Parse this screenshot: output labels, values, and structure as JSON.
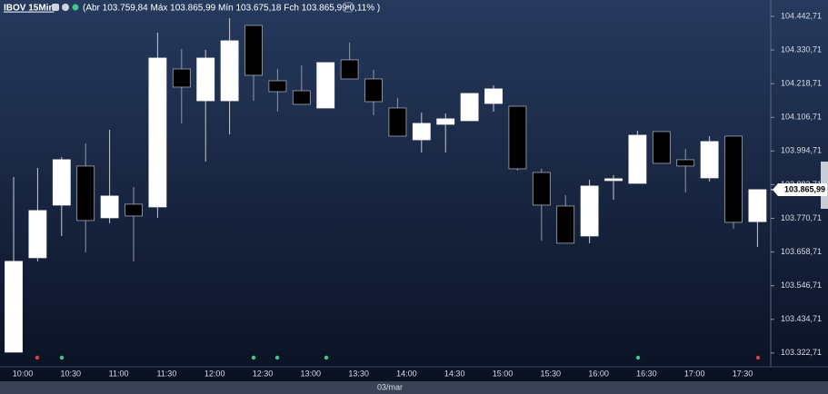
{
  "chart_data": {
    "type": "candlestick",
    "title": "IBOV 15Min",
    "subtitle": "(Abr 103.759,84 Máx 103.865,99 Mín 103.675,18 Fch 103.865,99 0,11% )",
    "x_label": "03/mar",
    "categories": [
      "10:00",
      null,
      "10:30",
      null,
      "11:00",
      null,
      "11:30",
      null,
      "12:00",
      null,
      "12:30",
      null,
      "13:00",
      null,
      "13:30",
      null,
      "14:00",
      null,
      "14:30",
      null,
      "15:00",
      null,
      "15:30",
      null,
      "16:00",
      null,
      "16:30",
      null,
      "17:00",
      null,
      "17:30",
      null
    ],
    "open": [
      103325.7,
      103639.6,
      103814.8,
      103944.6,
      103772.5,
      103817.8,
      103808.7,
      104267.6,
      104161.9,
      104161.9,
      104412.5,
      104228.3,
      104195.1,
      104137.8,
      104297.8,
      104234.4,
      104137.8,
      104032.1,
      104083.5,
      104095.5,
      104152.9,
      104143.8,
      103923.4,
      103811.7,
      103712.1,
      103896.3,
      103887.2,
      104059.3,
      103965.7,
      103905.3,
      104044.2,
      103759.84
    ],
    "high": [
      103908.3,
      103938.6,
      103974.7,
      104020.1,
      104065.3,
      103875.1,
      104388.4,
      104334.0,
      104331.0,
      104436.7,
      104412.5,
      104267.6,
      104279.7,
      104288.7,
      104355.1,
      104264.6,
      104171.0,
      104122.7,
      104119.7,
      104186.1,
      104213.3,
      104143.8,
      103935.5,
      103847.9,
      103899.3,
      103914.4,
      104062.3,
      104059.3,
      104001.9,
      104044.2,
      104044.2,
      103865.99
    ],
    "low": [
      103325.7,
      103627.6,
      103712.1,
      103657.8,
      103754.4,
      103627.6,
      103772.5,
      104086.5,
      103959.7,
      104050.2,
      104161.9,
      104125.7,
      104149.9,
      104137.8,
      104234.4,
      104113.6,
      104044.2,
      103989.9,
      103989.9,
      104095.5,
      104125.7,
      103929.5,
      103697.0,
      103688.0,
      103688.0,
      103832.9,
      103887.2,
      103953.6,
      103857.0,
      103893.2,
      103736.2,
      103675.18
    ],
    "close": [
      103627.6,
      103796.6,
      103965.7,
      103763.4,
      103844.9,
      103778.5,
      104303.8,
      104207.2,
      104303.8,
      104361.2,
      104246.5,
      104192.1,
      104149.9,
      104288.7,
      104234.4,
      104158.9,
      104044.2,
      104086.5,
      104101.6,
      104186.1,
      104201.2,
      103935.5,
      103814.8,
      103688.0,
      103878.1,
      103902.3,
      104047.2,
      103953.6,
      103944.6,
      104026.1,
      103757.4,
      103865.99
    ],
    "up_color": "#ffffff",
    "down_color": "#000000",
    "ylim": [
      103277,
      104497
    ],
    "yticks": [
      {
        "value": 103322.71,
        "label": "103.322,71"
      },
      {
        "value": 103434.71,
        "label": "103.434,71"
      },
      {
        "value": 103546.71,
        "label": "103.546,71"
      },
      {
        "value": 103658.71,
        "label": "103.658,71"
      },
      {
        "value": 103770.71,
        "label": "103.770,71"
      },
      {
        "value": 103882.71,
        "label": "103.882,71"
      },
      {
        "value": 103994.71,
        "label": "103.994,71"
      },
      {
        "value": 104106.71,
        "label": "104.106,71"
      },
      {
        "value": 104218.71,
        "label": "104.218,71"
      },
      {
        "value": 104330.71,
        "label": "104.330,71"
      },
      {
        "value": 104442.71,
        "label": "104.442,71"
      }
    ],
    "last_price": {
      "value": 103865.99,
      "label": "103.865,99"
    }
  }
}
